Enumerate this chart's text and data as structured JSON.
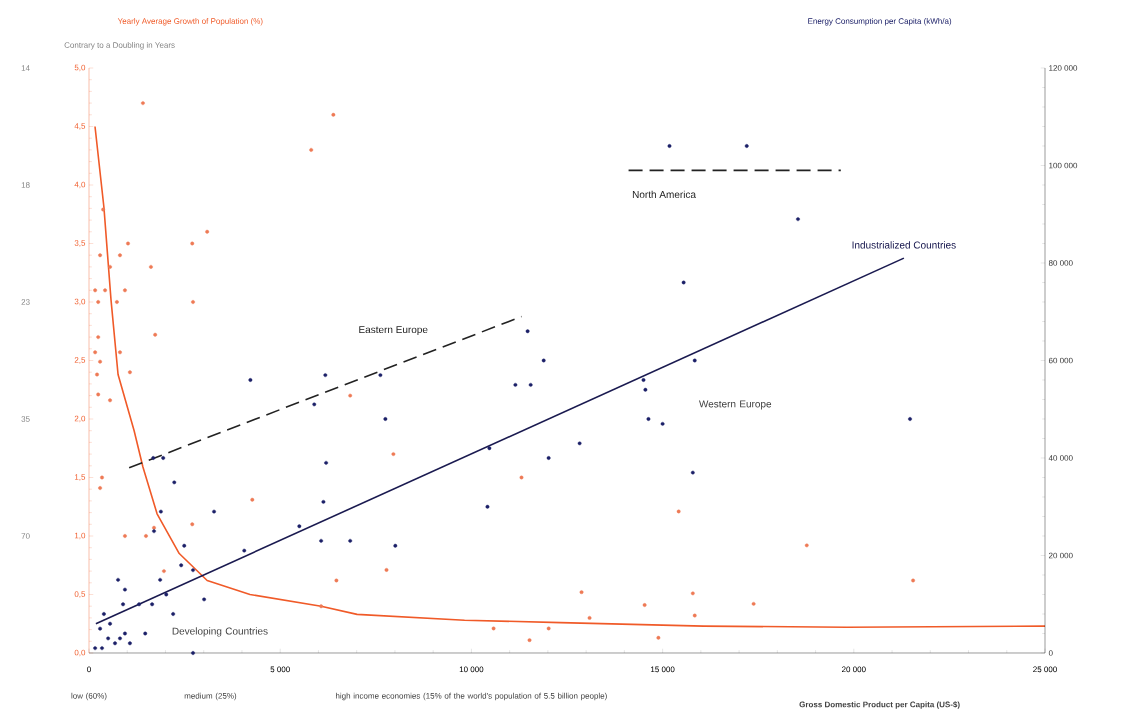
{
  "chart_data": {
    "type": "scatter",
    "marker": "circle",
    "ylabel": "Yearly Average Growth of Population (%)",
    "y2label": "Energy Consumption per Capita (kWh/a)",
    "xlabel": "Gross Domestic Product per Capita (US-$)",
    "xlim": [
      0,
      25000
    ],
    "xticks": [
      0,
      {
        "value": 5000,
        "label": "5 000"
      },
      {
        "value": 10000,
        "label": "10 000"
      },
      {
        "value": 15000,
        "label": "15 000"
      },
      {
        "value": 20000,
        "label": "20 000"
      },
      {
        "value": 25000,
        "label": "25 000"
      }
    ],
    "ylim": [
      0,
      5
    ],
    "yticks": [
      {
        "value": 0,
        "label": "0,0"
      },
      {
        "value": 0.5,
        "label": "0,5"
      },
      {
        "value": 1,
        "label": "1,0"
      },
      {
        "value": 1.5,
        "label": "1,5"
      },
      {
        "value": 2,
        "label": "2,0"
      },
      {
        "value": 2.5,
        "label": "2,5"
      },
      {
        "value": 3,
        "label": "3,0"
      },
      {
        "value": 3.5,
        "label": "3,5"
      },
      {
        "value": 4,
        "label": "4,0"
      },
      {
        "value": 4.5,
        "label": "4,5"
      },
      {
        "value": 5,
        "label": "5,0"
      }
    ],
    "y2lim": [
      0,
      120000
    ],
    "y2ticks": [
      0,
      {
        "value": 20000,
        "label": "20 000"
      },
      {
        "value": 40000,
        "label": "40 000"
      },
      {
        "value": 60000,
        "label": "60 000"
      },
      {
        "value": 80000,
        "label": "80 000"
      },
      {
        "value": 100000,
        "label": "100 000"
      },
      {
        "value": 120000,
        "label": "120 000"
      }
    ],
    "annotations": [
      "Western Europe",
      "Developing Countries",
      "low (60%)",
      "medium (25%)",
      "high income economies (15% of the world's population of 5.5 billion people)",
      "Contrary to a Doubling in Years",
      "70",
      "35",
      "23",
      "18",
      "14"
    ],
    "series": [
      {
        "axis": "y",
        "color": "#ee7a55",
        "x": [
          5810,
          1410,
          6390,
          370,
          1020,
          2700,
          3090,
          290,
          810,
          550,
          1620,
          160,
          420,
          940,
          240,
          730,
          2720,
          1730,
          240,
          160,
          810,
          290,
          1070,
          210,
          240,
          550,
          6830,
          7960,
          340,
          290,
          4270,
          2700,
          940,
          1490,
          1700,
          7780,
          1960,
          6070,
          13090,
          14530,
          15790,
          12880,
          14890,
          11520,
          12020,
          17380,
          10580,
          21550,
          18770,
          15420,
          11310,
          6470,
          15840
        ],
        "values": [
          4.3,
          4.7,
          4.6,
          3.79,
          3.5,
          3.5,
          3.6,
          3.4,
          3.4,
          3.3,
          3.3,
          3.1,
          3.1,
          3.1,
          3.0,
          3.0,
          3.0,
          2.72,
          2.7,
          2.57,
          2.57,
          2.49,
          2.4,
          2.38,
          2.21,
          2.16,
          2.2,
          1.7,
          1.5,
          1.41,
          1.31,
          1.1,
          1.0,
          1.0,
          1.07,
          0.71,
          0.7,
          0.4,
          0.3,
          0.41,
          0.51,
          0.52,
          0.13,
          0.11,
          0.21,
          0.42,
          0.21,
          0.62,
          0.92,
          1.21,
          1.5,
          0.62,
          0.32
        ]
      },
      {
        "type": "line",
        "axis": "y",
        "marker": "none",
        "color": "#f05a28",
        "x": [
          157,
          390,
          575,
          760,
          1180,
          1410,
          1780,
          2360,
          3090,
          4210,
          6070,
          7010,
          9820,
          12330,
          16070,
          19820,
          25000
        ],
        "values": [
          4.5,
          3.81,
          3.02,
          2.38,
          1.9,
          1.59,
          1.19,
          0.85,
          0.62,
          0.5,
          0.4,
          0.33,
          0.28,
          0.26,
          0.23,
          0.22,
          0.23
        ]
      },
      {
        "axis": "y2",
        "color": "#1c2068",
        "x": [
          15180,
          17200,
          18540,
          15550,
          11470,
          11890,
          15840,
          4220,
          6180,
          7620,
          11150,
          11550,
          14500,
          14550,
          5890,
          7750,
          14630,
          15000,
          12830,
          21470,
          10470,
          12020,
          15790,
          6200,
          1680,
          1940,
          2230,
          6130,
          3270,
          1880,
          10420,
          5500,
          1700,
          6070,
          6830,
          8010,
          4060,
          2490,
          2410,
          2720,
          1860,
          3010,
          760,
          940,
          890,
          390,
          1310,
          1650,
          2020,
          2200,
          1470,
          290,
          550,
          500,
          810,
          160,
          680,
          940,
          340,
          1070,
          2720
        ],
        "values": [
          104000,
          104000,
          89000,
          76000,
          66000,
          60000,
          60000,
          56000,
          57000,
          57000,
          55000,
          55000,
          56000,
          54000,
          51000,
          48000,
          48000,
          47000,
          43000,
          48000,
          42000,
          40000,
          37000,
          39000,
          40000,
          40000,
          35000,
          31000,
          29000,
          29000,
          30000,
          26000,
          25000,
          23000,
          23000,
          22000,
          21000,
          22000,
          18000,
          17000,
          15000,
          11000,
          15000,
          13000,
          10000,
          8000,
          10000,
          10000,
          12000,
          8000,
          4000,
          5000,
          6000,
          3000,
          3000,
          1000,
          2000,
          4000,
          1000,
          2000,
          0
        ]
      },
      {
        "type": "line",
        "axis": "y2",
        "marker": "none",
        "name": "Industrialized Countries",
        "color": "#1a1a50",
        "line_style": "solid",
        "x": [
          180,
          21310
        ],
        "values": [
          6000,
          81000
        ]
      },
      {
        "type": "line",
        "axis": "y2",
        "marker": "none",
        "name": "Eastern Europe",
        "color": "#222222",
        "line_style": "dashed",
        "x": [
          1050,
          11310
        ],
        "values": [
          38000,
          69000
        ]
      },
      {
        "type": "line",
        "axis": "y2",
        "marker": "none",
        "name": "North America",
        "color": "#222222",
        "line_style": "dashed",
        "x": [
          14110,
          19660
        ],
        "values": [
          99000,
          99000
        ]
      }
    ]
  }
}
